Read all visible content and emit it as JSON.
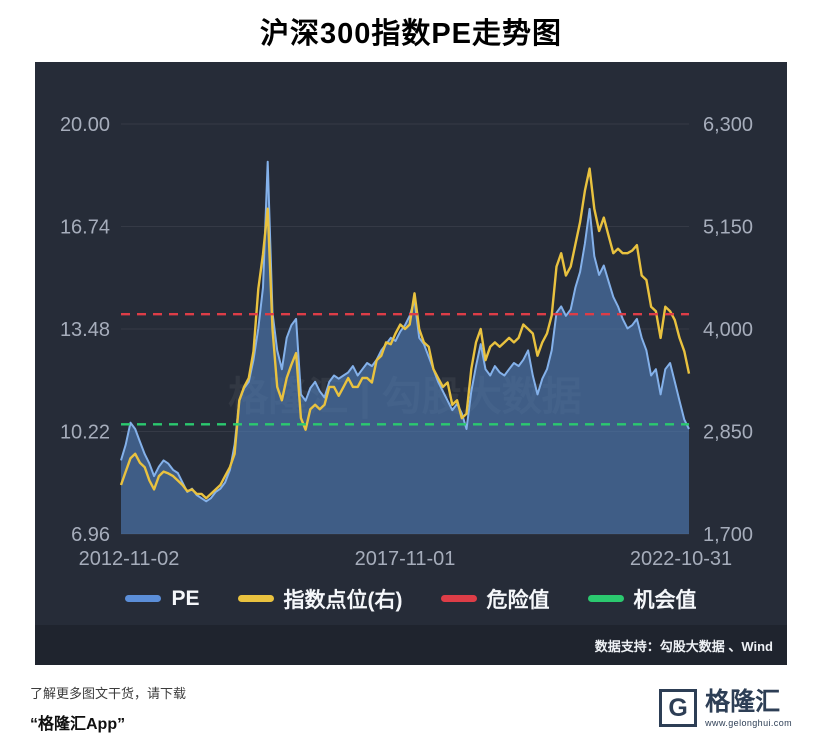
{
  "title": "沪深300指数PE走势图",
  "chart_data": {
    "type": "line",
    "x_labels": [
      "2012-11-02",
      "2017-11-01",
      "2022-10-31"
    ],
    "left_axis": {
      "ticks": [
        "20.00",
        "16.74",
        "13.48",
        "10.22",
        "6.96"
      ],
      "min": 6.96,
      "max": 20.0
    },
    "right_axis": {
      "ticks": [
        "6,300",
        "5,150",
        "4,000",
        "2,850",
        "1,700"
      ],
      "min": 1700,
      "max": 6300
    },
    "series": [
      {
        "name": "PE",
        "axis": "left",
        "style": "area",
        "values": [
          9.3,
          9.8,
          10.5,
          10.3,
          9.9,
          9.5,
          9.2,
          8.8,
          9.1,
          9.3,
          9.2,
          9.0,
          8.9,
          8.6,
          8.3,
          8.4,
          8.2,
          8.1,
          8.0,
          8.1,
          8.3,
          8.4,
          8.6,
          9.0,
          9.8,
          11.2,
          11.6,
          11.8,
          12.5,
          13.5,
          14.8,
          18.8,
          14.0,
          12.8,
          12.2,
          13.2,
          13.6,
          13.8,
          11.4,
          11.2,
          11.6,
          11.8,
          11.5,
          11.3,
          11.8,
          12.0,
          11.9,
          12.0,
          12.1,
          12.3,
          12.0,
          12.2,
          12.4,
          12.3,
          12.5,
          12.8,
          13.0,
          13.2,
          13.1,
          13.4,
          13.6,
          13.9,
          14.4,
          13.2,
          13.0,
          12.6,
          12.2,
          11.8,
          11.5,
          11.2,
          10.9,
          11.1,
          10.8,
          10.3,
          11.5,
          12.3,
          13.0,
          12.2,
          12.0,
          12.3,
          12.1,
          12.0,
          12.2,
          12.4,
          12.3,
          12.5,
          12.8,
          12.0,
          11.4,
          11.9,
          12.2,
          12.8,
          14.0,
          14.2,
          13.9,
          14.1,
          14.8,
          15.3,
          16.2,
          17.3,
          15.8,
          15.2,
          15.5,
          15.0,
          14.5,
          14.2,
          13.8,
          13.5,
          13.6,
          13.8,
          13.2,
          12.8,
          12.0,
          12.2,
          11.4,
          12.2,
          12.4,
          11.8,
          11.2,
          10.6,
          10.3
        ]
      },
      {
        "name": "指数点位(右)",
        "axis": "right",
        "style": "line",
        "values": [
          2250,
          2400,
          2550,
          2600,
          2500,
          2450,
          2300,
          2200,
          2350,
          2400,
          2380,
          2350,
          2300,
          2250,
          2180,
          2200,
          2150,
          2150,
          2100,
          2150,
          2200,
          2250,
          2350,
          2450,
          2600,
          3200,
          3350,
          3450,
          3750,
          4450,
          4840,
          5350,
          4000,
          3350,
          3200,
          3450,
          3600,
          3730,
          3000,
          2870,
          3100,
          3150,
          3100,
          3150,
          3350,
          3350,
          3250,
          3350,
          3450,
          3350,
          3350,
          3450,
          3450,
          3400,
          3650,
          3700,
          3850,
          3830,
          3950,
          4050,
          4000,
          4050,
          4400,
          4000,
          3850,
          3800,
          3550,
          3450,
          3350,
          3400,
          3150,
          3200,
          3000,
          3050,
          3550,
          3850,
          4000,
          3650,
          3800,
          3850,
          3800,
          3850,
          3900,
          3850,
          3900,
          4050,
          4000,
          3950,
          3700,
          3850,
          3950,
          4150,
          4700,
          4850,
          4600,
          4700,
          4950,
          5200,
          5550,
          5800,
          5350,
          5100,
          5250,
          5050,
          4850,
          4900,
          4850,
          4850,
          4880,
          4940,
          4600,
          4550,
          4250,
          4200,
          3900,
          4250,
          4200,
          4100,
          3900,
          3750,
          3500
        ]
      }
    ],
    "reference_lines": [
      {
        "name": "危险值",
        "axis": "left",
        "value": 13.95,
        "color": "#dd3d47"
      },
      {
        "name": "机会值",
        "axis": "left",
        "value": 10.45,
        "color": "#2bc96f"
      }
    ],
    "watermark": "格隆汇 | 勾股大数据",
    "legend_position": "bottom"
  },
  "legend": [
    {
      "label": "PE",
      "color": "#5b8ed8"
    },
    {
      "label": "指数点位(右)",
      "color": "#e9c23f"
    },
    {
      "label": "危险值",
      "color": "#dd3d47"
    },
    {
      "label": "机会值",
      "color": "#2bc96f"
    }
  ],
  "data_support": "数据支持：勾股大数据 、Wind",
  "footer": {
    "promo_line1": "了解更多图文干货，请下载",
    "promo_line2": "“格隆汇App”",
    "logo_letter": "G",
    "logo_text": "格隆汇",
    "logo_url": "www.gelonghui.com"
  },
  "colors": {
    "panel_bg": "#262c38",
    "strip_bg": "#1f242e",
    "axis_text": "#a6adbb",
    "grid_line": "rgba(255,255,255,0.07)",
    "pe_line": "#84b1ea",
    "pe_fill": "rgba(79,124,183,0.62)",
    "index_line": "#e9c23f",
    "danger": "#dd3d47",
    "opportunity": "#2bc96f",
    "watermark_text": "rgba(255,255,255,0.06)"
  }
}
